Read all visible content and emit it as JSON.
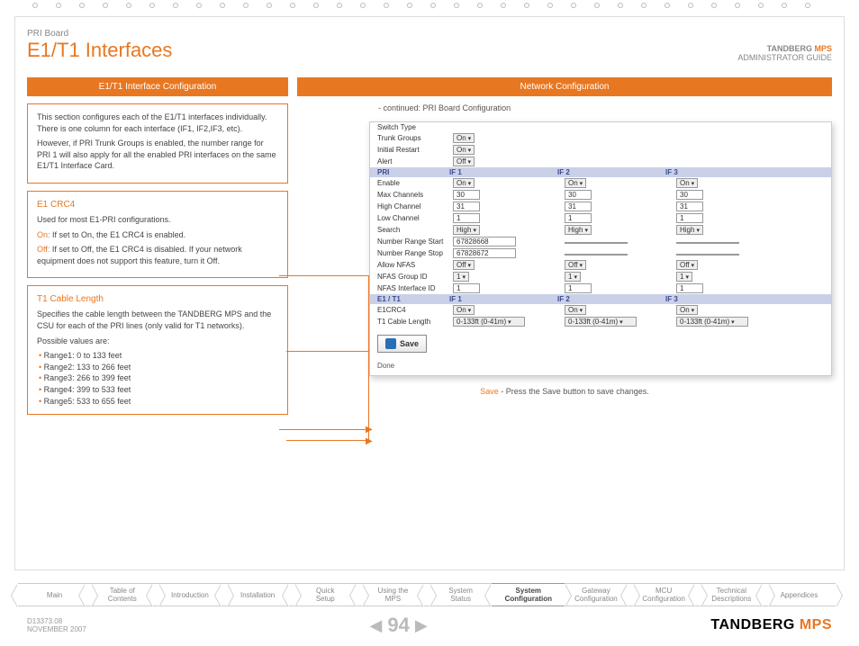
{
  "header": {
    "sub": "PRI Board",
    "title": "E1/T1 Interfaces",
    "brand": "TANDBERG",
    "brand_suffix": "MPS",
    "guide": "ADMINISTRATOR GUIDE"
  },
  "left_col": {
    "head": "E1/T1 Interface Configuration",
    "intro1": "This section configures each of the E1/T1 interfaces individually. There is one column for each interface (IF1, IF2,IF3, etc).",
    "intro2": "However, if PRI Trunk Groups is enabled, the number range for PRI 1 will also apply for all the enabled PRI interfaces on the same E1/T1 Interface Card.",
    "e1crc4": {
      "title": "E1 CRC4",
      "desc": "Used for most E1-PRI configurations.",
      "on_label": "On:",
      "on_text": "If set to On, the E1 CRC4 is enabled.",
      "off_label": "Off:",
      "off_text": "If set to Off, the E1 CRC4 is disabled. If your network equipment does not support this feature, turn it Off."
    },
    "t1": {
      "title": "T1 Cable Length",
      "desc": "Specifies the cable length between the TANDBERG MPS and the CSU for each of the PRI lines (only valid for T1 networks).",
      "possible": "Possible values are:",
      "ranges": [
        "Range1: 0 to 133 feet",
        "Range2: 133 to 266 feet",
        "Range3: 266 to 399 feet",
        "Range4: 399 to 533 feet",
        "Range5: 533 to 655 feet"
      ]
    }
  },
  "right_col": {
    "head": "Network Configuration",
    "continued": "- continued: PRI Board Configuration",
    "save_note_b": "Save",
    "save_note": " - Press the Save button to save changes."
  },
  "form": {
    "switch_type": "Switch Type",
    "trunk_groups": {
      "label": "Trunk Groups",
      "val": "On"
    },
    "initial_restart": {
      "label": "Initial Restart",
      "val": "On"
    },
    "alert": {
      "label": "Alert",
      "val": "Off"
    },
    "sect_pri": {
      "h": "PRI",
      "c1": "IF 1",
      "c2": "IF 2",
      "c3": "IF 3"
    },
    "enable": {
      "label": "Enable",
      "v1": "On",
      "v2": "On",
      "v3": "On"
    },
    "max_ch": {
      "label": "Max Channels",
      "v1": "30",
      "v2": "30",
      "v3": "30"
    },
    "high_ch": {
      "label": "High Channel",
      "v1": "31",
      "v2": "31",
      "v3": "31"
    },
    "low_ch": {
      "label": "Low Channel",
      "v1": "1",
      "v2": "1",
      "v3": "1"
    },
    "search": {
      "label": "Search",
      "v1": "High",
      "v2": "High",
      "v3": "High"
    },
    "nr_start": {
      "label": "Number Range Start",
      "v1": "67828668",
      "v2": "",
      "v3": ""
    },
    "nr_stop": {
      "label": "Number Range Stop",
      "v1": "67828672",
      "v2": "",
      "v3": ""
    },
    "allow_nfas": {
      "label": "Allow NFAS",
      "v1": "Off",
      "v2": "Off",
      "v3": "Off"
    },
    "nfas_gid": {
      "label": "NFAS Group ID",
      "v1": "1",
      "v2": "1",
      "v3": "1"
    },
    "nfas_iid": {
      "label": "NFAS Interface ID",
      "v1": "1",
      "v2": "1",
      "v3": "1"
    },
    "sect_e1t1": {
      "h": "E1 / T1",
      "c1": "IF 1",
      "c2": "IF 2",
      "c3": "IF 3"
    },
    "e1crc4": {
      "label": "E1CRC4",
      "v1": "On",
      "v2": "On",
      "v3": "On"
    },
    "t1cable": {
      "label": "T1 Cable Length",
      "v1": "0-133ft (0-41m)",
      "v2": "0-133ft (0-41m)",
      "v3": "0-133ft (0-41m)"
    },
    "save": "Save",
    "done": "Done"
  },
  "nav": {
    "tabs": [
      "Main",
      "Table of Contents",
      "Introduction",
      "Installation",
      "Quick Setup",
      "Using the MPS",
      "System Status",
      "System Configuration",
      "Gateway Configuration",
      "MCU Configuration",
      "Technical Descriptions",
      "Appendices"
    ],
    "active": 7
  },
  "footer": {
    "doc": "D13373.08",
    "date": "NOVEMBER 2007",
    "page": "94",
    "brand": "TANDBERG",
    "mps": "MPS"
  }
}
